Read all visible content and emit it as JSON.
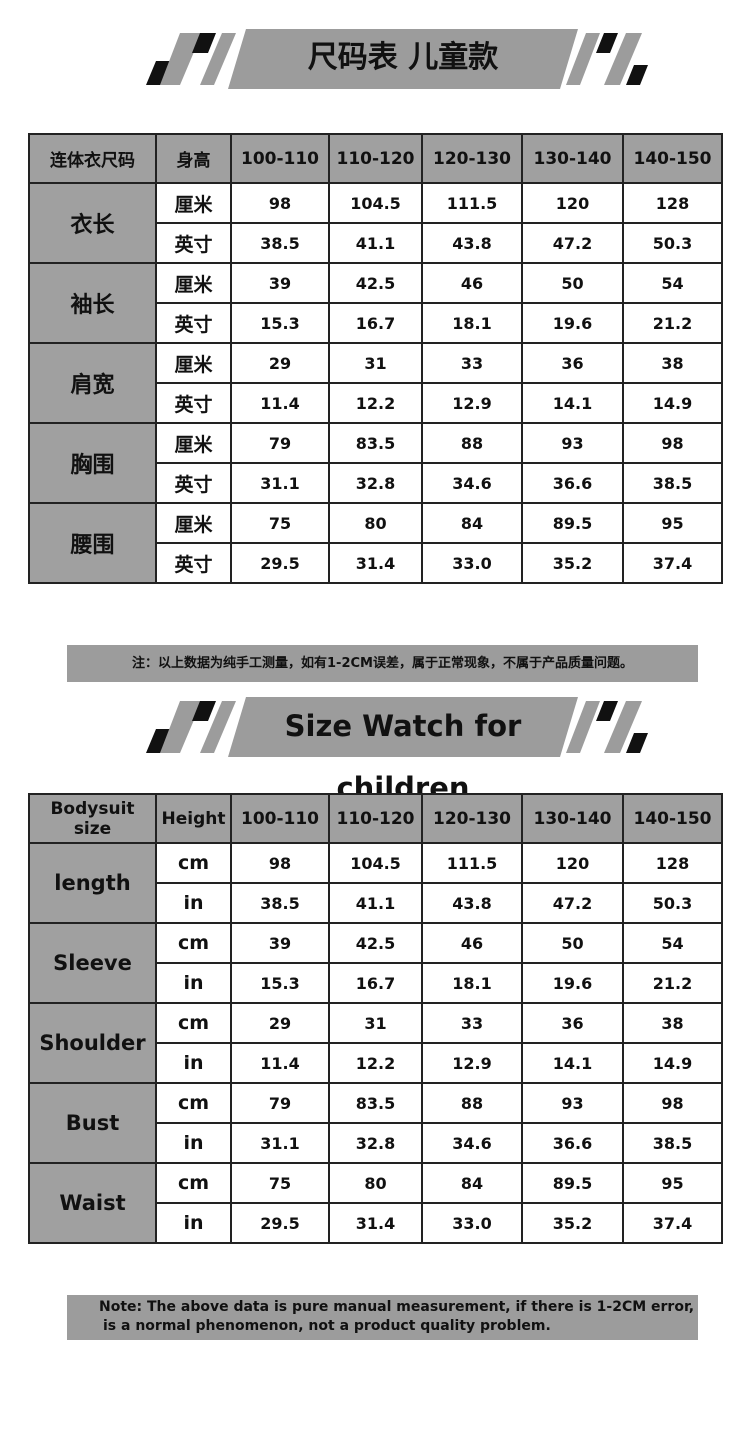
{
  "cn": {
    "title": "尺码表 儿童款",
    "headers": [
      "连体衣尺码",
      "身高",
      "100-110",
      "110-120",
      "120-130",
      "130-140",
      "140-150"
    ],
    "rows": [
      {
        "label": "衣长",
        "cm_unit": "厘米",
        "in_unit": "英寸",
        "cm": [
          "98",
          "104.5",
          "111.5",
          "120",
          "128"
        ],
        "in": [
          "38.5",
          "41.1",
          "43.8",
          "47.2",
          "50.3"
        ]
      },
      {
        "label": "袖长",
        "cm_unit": "厘米",
        "in_unit": "英寸",
        "cm": [
          "39",
          "42.5",
          "46",
          "50",
          "54"
        ],
        "in": [
          "15.3",
          "16.7",
          "18.1",
          "19.6",
          "21.2"
        ]
      },
      {
        "label": "肩宽",
        "cm_unit": "厘米",
        "in_unit": "英寸",
        "cm": [
          "29",
          "31",
          "33",
          "36",
          "38"
        ],
        "in": [
          "11.4",
          "12.2",
          "12.9",
          "14.1",
          "14.9"
        ]
      },
      {
        "label": "胸围",
        "cm_unit": "厘米",
        "in_unit": "英寸",
        "cm": [
          "79",
          "83.5",
          "88",
          "93",
          "98"
        ],
        "in": [
          "31.1",
          "32.8",
          "34.6",
          "36.6",
          "38.5"
        ]
      },
      {
        "label": "腰围",
        "cm_unit": "厘米",
        "in_unit": "英寸",
        "cm": [
          "75",
          "80",
          "84",
          "89.5",
          "95"
        ],
        "in": [
          "29.5",
          "31.4",
          "33.0",
          "35.2",
          "37.4"
        ]
      }
    ],
    "note": "注：以上数据为纯手工测量，如有1-2CM误差，属于正常现象，不属于产品质量问题。"
  },
  "en": {
    "title": "Size Watch for children",
    "headers": [
      "Bodysuit size",
      "Height",
      "100-110",
      "110-120",
      "120-130",
      "130-140",
      "140-150"
    ],
    "rows": [
      {
        "label": "length",
        "cm_unit": "cm",
        "in_unit": "in",
        "cm": [
          "98",
          "104.5",
          "111.5",
          "120",
          "128"
        ],
        "in": [
          "38.5",
          "41.1",
          "43.8",
          "47.2",
          "50.3"
        ]
      },
      {
        "label": "Sleeve",
        "cm_unit": "cm",
        "in_unit": "in",
        "cm": [
          "39",
          "42.5",
          "46",
          "50",
          "54"
        ],
        "in": [
          "15.3",
          "16.7",
          "18.1",
          "19.6",
          "21.2"
        ]
      },
      {
        "label": "Shoulder",
        "cm_unit": "cm",
        "in_unit": "in",
        "cm": [
          "29",
          "31",
          "33",
          "36",
          "38"
        ],
        "in": [
          "11.4",
          "12.2",
          "12.9",
          "14.1",
          "14.9"
        ]
      },
      {
        "label": "Bust",
        "cm_unit": "cm",
        "in_unit": "in",
        "cm": [
          "79",
          "83.5",
          "88",
          "93",
          "98"
        ],
        "in": [
          "31.1",
          "32.8",
          "34.6",
          "36.6",
          "38.5"
        ]
      },
      {
        "label": "Waist",
        "cm_unit": "cm",
        "in_unit": "in",
        "cm": [
          "75",
          "80",
          "84",
          "89.5",
          "95"
        ],
        "in": [
          "29.5",
          "31.4",
          "33.0",
          "35.2",
          "37.4"
        ]
      }
    ],
    "note_line1": "Note: The above data is pure manual measurement, if there is 1-2CM error,",
    "note_line2": "is a normal phenomenon, not a product quality problem."
  },
  "colors": {
    "header_grey": "#a0a0a0",
    "stripe_black": "#111111",
    "border": "#222222"
  }
}
